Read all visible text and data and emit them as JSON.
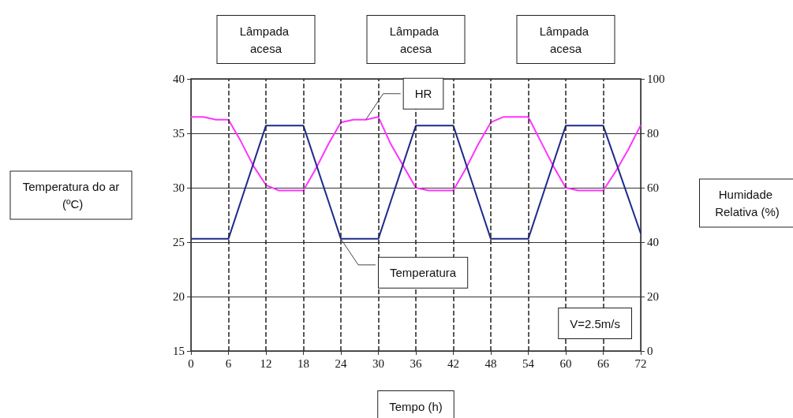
{
  "chart_data": {
    "type": "line",
    "xlabel": "Tempo (h)",
    "ylabel": "Temperatura do ar (ºC)",
    "y2label": "Humidade Relativa (%)",
    "series": [
      {
        "name": "HR",
        "color": "#ff33ff",
        "axis": "y2",
        "x": [
          0,
          2,
          4,
          6,
          8,
          10,
          12,
          14,
          16,
          18,
          20,
          22,
          24,
          26,
          28,
          30,
          32,
          34,
          36,
          38,
          40,
          42,
          44,
          46,
          48,
          50,
          52,
          54,
          56,
          58,
          60,
          62,
          64,
          66,
          68,
          70,
          72
        ],
        "values": [
          86,
          86,
          85,
          85,
          77,
          68,
          61,
          59,
          59,
          59,
          67,
          76,
          84,
          85,
          85,
          86,
          76,
          68,
          60,
          59,
          59,
          59,
          67,
          76,
          84,
          86,
          86,
          86,
          77,
          68,
          60,
          59,
          59,
          59,
          66,
          74,
          83
        ]
      },
      {
        "name": "Temperatura",
        "color": "#1f2a8a",
        "x": [
          0,
          6,
          12,
          18,
          24,
          30,
          36,
          42,
          48,
          54,
          60,
          66,
          72
        ],
        "values": [
          25.3,
          25.3,
          35.7,
          35.7,
          25.3,
          25.3,
          35.7,
          35.7,
          25.3,
          25.3,
          35.7,
          35.7,
          25.8
        ]
      }
    ],
    "xlim": [
      0,
      72
    ],
    "xticks": [
      0,
      6,
      12,
      18,
      24,
      30,
      36,
      42,
      48,
      54,
      60,
      66,
      72
    ],
    "ylim": [
      15,
      40
    ],
    "yticks": [
      15,
      20,
      25,
      30,
      35,
      40
    ],
    "y2lim": [
      0,
      100
    ],
    "y2ticks": [
      0,
      20,
      40,
      60,
      80,
      100
    ],
    "ref_lines": [
      {
        "axis": "x",
        "value": 6,
        "line_style": "dashed"
      },
      {
        "axis": "x",
        "value": 12,
        "line_style": "dashed"
      },
      {
        "axis": "x",
        "value": 18,
        "line_style": "dashed"
      },
      {
        "axis": "x",
        "value": 24,
        "line_style": "dashed"
      },
      {
        "axis": "x",
        "value": 30,
        "line_style": "dashed"
      },
      {
        "axis": "x",
        "value": 36,
        "line_style": "dashed"
      },
      {
        "axis": "x",
        "value": 42,
        "line_style": "dashed"
      },
      {
        "axis": "x",
        "value": 48,
        "line_style": "dashed"
      },
      {
        "axis": "x",
        "value": 54,
        "line_style": "dashed"
      },
      {
        "axis": "x",
        "value": 60,
        "line_style": "dashed"
      },
      {
        "axis": "x",
        "value": 66,
        "line_style": "dashed"
      }
    ],
    "annotations": [
      "Lâmpada acesa",
      "Lâmpada acesa",
      "Lâmpada acesa",
      "V=2.5m/s"
    ],
    "grid": "y",
    "legend": false,
    "marker": "none",
    "line_style": "solid"
  }
}
